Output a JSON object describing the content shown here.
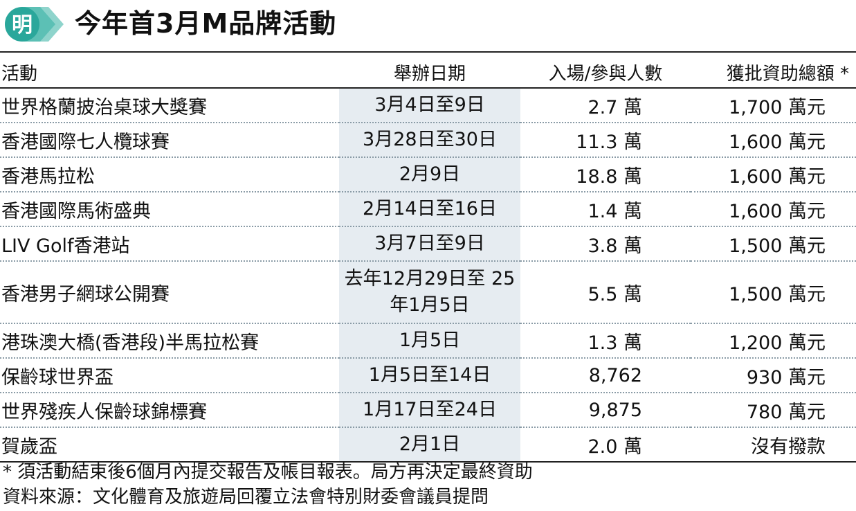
{
  "brand": {
    "logo_char": "明",
    "accent": "#2aa79b"
  },
  "title": "今年首3月M品牌活動",
  "table": {
    "headers": [
      "活動",
      "舉辦日期",
      "入場/參與人數",
      "獲批資助總額 *"
    ],
    "rows": [
      {
        "event": "世界格蘭披治桌球大獎賽",
        "date": "3月4日至9日",
        "attendance": "2.7 萬",
        "funding": "1,700 萬元"
      },
      {
        "event": "香港國際七人欖球賽",
        "date": "3月28日至30日",
        "attendance": "11.3 萬",
        "funding": "1,600 萬元"
      },
      {
        "event": "香港馬拉松",
        "date": "2月9日",
        "attendance": "18.8 萬",
        "funding": "1,600 萬元"
      },
      {
        "event": "香港國際馬術盛典",
        "date": "2月14日至16日",
        "attendance": "1.4 萬",
        "funding": "1,600 萬元"
      },
      {
        "event": "LIV Golf香港站",
        "date": "3月7日至9日",
        "attendance": "3.8 萬",
        "funding": "1,500 萬元"
      },
      {
        "event": "香港男子網球公開賽",
        "date": "去年12月29日至 25年1月5日",
        "attendance": "5.5 萬",
        "funding": "1,500 萬元"
      },
      {
        "event": "港珠澳大橋(香港段)半馬拉松賽",
        "date": "1月5日",
        "attendance": "1.3 萬",
        "funding": "1,200 萬元"
      },
      {
        "event": "保齡球世界盃",
        "date": "1月5日至14日",
        "attendance": "8,762",
        "funding": "930 萬元"
      },
      {
        "event": "世界殘疾人保齡球錦標賽",
        "date": "1月17日至24日",
        "attendance": "9,875",
        "funding": "780 萬元"
      },
      {
        "event": "賀歲盃",
        "date": "2月1日",
        "attendance": "2.0 萬",
        "funding": "沒有撥款"
      }
    ]
  },
  "notes": {
    "footnote": "* 須活動結束後6個月內提交報告及帳目報表。局方再決定最終資助",
    "source": "資料來源：文化體育及旅遊局回覆立法會特別財委會議員提問"
  }
}
